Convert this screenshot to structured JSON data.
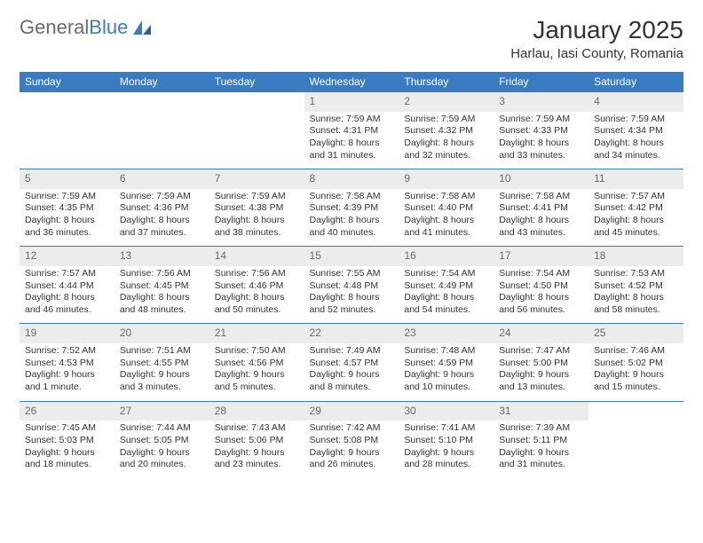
{
  "brand": {
    "part1": "General",
    "part2": "Blue"
  },
  "title": "January 2025",
  "location": "Harlau, Iasi County, Romania",
  "colors": {
    "header_bg": "#3b7bbf",
    "header_text": "#ffffff",
    "daynum_bg": "#ececec",
    "daynum_text": "#6b6b6b",
    "border": "#3b7bbf",
    "body_text": "#333333"
  },
  "day_headers": [
    "Sunday",
    "Monday",
    "Tuesday",
    "Wednesday",
    "Thursday",
    "Friday",
    "Saturday"
  ],
  "weeks": [
    [
      null,
      null,
      null,
      {
        "n": "1",
        "sr": "7:59 AM",
        "ss": "4:31 PM",
        "dl": "8 hours and 31 minutes."
      },
      {
        "n": "2",
        "sr": "7:59 AM",
        "ss": "4:32 PM",
        "dl": "8 hours and 32 minutes."
      },
      {
        "n": "3",
        "sr": "7:59 AM",
        "ss": "4:33 PM",
        "dl": "8 hours and 33 minutes."
      },
      {
        "n": "4",
        "sr": "7:59 AM",
        "ss": "4:34 PM",
        "dl": "8 hours and 34 minutes."
      }
    ],
    [
      {
        "n": "5",
        "sr": "7:59 AM",
        "ss": "4:35 PM",
        "dl": "8 hours and 36 minutes."
      },
      {
        "n": "6",
        "sr": "7:59 AM",
        "ss": "4:36 PM",
        "dl": "8 hours and 37 minutes."
      },
      {
        "n": "7",
        "sr": "7:59 AM",
        "ss": "4:38 PM",
        "dl": "8 hours and 38 minutes."
      },
      {
        "n": "8",
        "sr": "7:58 AM",
        "ss": "4:39 PM",
        "dl": "8 hours and 40 minutes."
      },
      {
        "n": "9",
        "sr": "7:58 AM",
        "ss": "4:40 PM",
        "dl": "8 hours and 41 minutes."
      },
      {
        "n": "10",
        "sr": "7:58 AM",
        "ss": "4:41 PM",
        "dl": "8 hours and 43 minutes."
      },
      {
        "n": "11",
        "sr": "7:57 AM",
        "ss": "4:42 PM",
        "dl": "8 hours and 45 minutes."
      }
    ],
    [
      {
        "n": "12",
        "sr": "7:57 AM",
        "ss": "4:44 PM",
        "dl": "8 hours and 46 minutes."
      },
      {
        "n": "13",
        "sr": "7:56 AM",
        "ss": "4:45 PM",
        "dl": "8 hours and 48 minutes."
      },
      {
        "n": "14",
        "sr": "7:56 AM",
        "ss": "4:46 PM",
        "dl": "8 hours and 50 minutes."
      },
      {
        "n": "15",
        "sr": "7:55 AM",
        "ss": "4:48 PM",
        "dl": "8 hours and 52 minutes."
      },
      {
        "n": "16",
        "sr": "7:54 AM",
        "ss": "4:49 PM",
        "dl": "8 hours and 54 minutes."
      },
      {
        "n": "17",
        "sr": "7:54 AM",
        "ss": "4:50 PM",
        "dl": "8 hours and 56 minutes."
      },
      {
        "n": "18",
        "sr": "7:53 AM",
        "ss": "4:52 PM",
        "dl": "8 hours and 58 minutes."
      }
    ],
    [
      {
        "n": "19",
        "sr": "7:52 AM",
        "ss": "4:53 PM",
        "dl": "9 hours and 1 minute."
      },
      {
        "n": "20",
        "sr": "7:51 AM",
        "ss": "4:55 PM",
        "dl": "9 hours and 3 minutes."
      },
      {
        "n": "21",
        "sr": "7:50 AM",
        "ss": "4:56 PM",
        "dl": "9 hours and 5 minutes."
      },
      {
        "n": "22",
        "sr": "7:49 AM",
        "ss": "4:57 PM",
        "dl": "9 hours and 8 minutes."
      },
      {
        "n": "23",
        "sr": "7:48 AM",
        "ss": "4:59 PM",
        "dl": "9 hours and 10 minutes."
      },
      {
        "n": "24",
        "sr": "7:47 AM",
        "ss": "5:00 PM",
        "dl": "9 hours and 13 minutes."
      },
      {
        "n": "25",
        "sr": "7:46 AM",
        "ss": "5:02 PM",
        "dl": "9 hours and 15 minutes."
      }
    ],
    [
      {
        "n": "26",
        "sr": "7:45 AM",
        "ss": "5:03 PM",
        "dl": "9 hours and 18 minutes."
      },
      {
        "n": "27",
        "sr": "7:44 AM",
        "ss": "5:05 PM",
        "dl": "9 hours and 20 minutes."
      },
      {
        "n": "28",
        "sr": "7:43 AM",
        "ss": "5:06 PM",
        "dl": "9 hours and 23 minutes."
      },
      {
        "n": "29",
        "sr": "7:42 AM",
        "ss": "5:08 PM",
        "dl": "9 hours and 26 minutes."
      },
      {
        "n": "30",
        "sr": "7:41 AM",
        "ss": "5:10 PM",
        "dl": "9 hours and 28 minutes."
      },
      {
        "n": "31",
        "sr": "7:39 AM",
        "ss": "5:11 PM",
        "dl": "9 hours and 31 minutes."
      },
      null
    ]
  ],
  "labels": {
    "sunrise": "Sunrise: ",
    "sunset": "Sunset: ",
    "daylight": "Daylight: "
  }
}
